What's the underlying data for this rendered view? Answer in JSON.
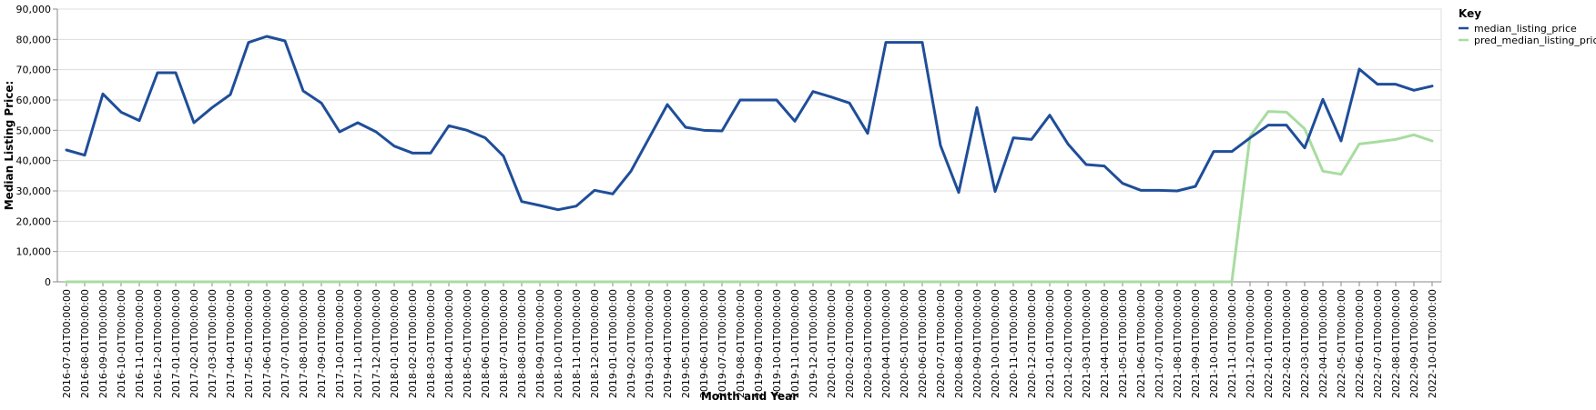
{
  "chart_data": {
    "type": "line",
    "xlabel": "Month and Year",
    "ylabel": "Median Listing Price:",
    "ylim": [
      0,
      90000
    ],
    "yticks": [
      "0",
      "10,000",
      "20,000",
      "30,000",
      "40,000",
      "50,000",
      "60,000",
      "70,000",
      "80,000",
      "90,000"
    ],
    "grid": true,
    "legend": {
      "title": "Key",
      "placement": "top-right"
    },
    "categories": [
      "2016-07-01T00:00:00",
      "2016-08-01T00:00:00",
      "2016-09-01T00:00:00",
      "2016-10-01T00:00:00",
      "2016-11-01T00:00:00",
      "2016-12-01T00:00:00",
      "2017-01-01T00:00:00",
      "2017-02-01T00:00:00",
      "2017-03-01T00:00:00",
      "2017-04-01T00:00:00",
      "2017-05-01T00:00:00",
      "2017-06-01T00:00:00",
      "2017-07-01T00:00:00",
      "2017-08-01T00:00:00",
      "2017-09-01T00:00:00",
      "2017-10-01T00:00:00",
      "2017-11-01T00:00:00",
      "2017-12-01T00:00:00",
      "2018-01-01T00:00:00",
      "2018-02-01T00:00:00",
      "2018-03-01T00:00:00",
      "2018-04-01T00:00:00",
      "2018-05-01T00:00:00",
      "2018-06-01T00:00:00",
      "2018-07-01T00:00:00",
      "2018-08-01T00:00:00",
      "2018-09-01T00:00:00",
      "2018-10-01T00:00:00",
      "2018-11-01T00:00:00",
      "2018-12-01T00:00:00",
      "2019-01-01T00:00:00",
      "2019-02-01T00:00:00",
      "2019-03-01T00:00:00",
      "2019-04-01T00:00:00",
      "2019-05-01T00:00:00",
      "2019-06-01T00:00:00",
      "2019-07-01T00:00:00",
      "2019-08-01T00:00:00",
      "2019-09-01T00:00:00",
      "2019-10-01T00:00:00",
      "2019-11-01T00:00:00",
      "2019-12-01T00:00:00",
      "2020-01-01T00:00:00",
      "2020-02-01T00:00:00",
      "2020-03-01T00:00:00",
      "2020-04-01T00:00:00",
      "2020-05-01T00:00:00",
      "2020-06-01T00:00:00",
      "2020-07-01T00:00:00",
      "2020-08-01T00:00:00",
      "2020-09-01T00:00:00",
      "2020-10-01T00:00:00",
      "2020-11-01T00:00:00",
      "2020-12-01T00:00:00",
      "2021-01-01T00:00:00",
      "2021-02-01T00:00:00",
      "2021-03-01T00:00:00",
      "2021-04-01T00:00:00",
      "2021-05-01T00:00:00",
      "2021-06-01T00:00:00",
      "2021-07-01T00:00:00",
      "2021-08-01T00:00:00",
      "2021-09-01T00:00:00",
      "2021-10-01T00:00:00",
      "2021-11-01T00:00:00",
      "2021-12-01T00:00:00",
      "2022-01-01T00:00:00",
      "2022-02-01T00:00:00",
      "2022-03-01T00:00:00",
      "2022-04-01T00:00:00",
      "2022-05-01T00:00:00",
      "2022-06-01T00:00:00",
      "2022-07-01T00:00:00",
      "2022-08-01T00:00:00",
      "2022-09-01T00:00:00",
      "2022-10-01T00:00:00"
    ],
    "series": [
      {
        "name": "median_listing_price",
        "color": "#1f4e99",
        "values": [
          43500,
          41800,
          62000,
          56000,
          53200,
          69000,
          69000,
          52500,
          57500,
          61800,
          79000,
          81000,
          79500,
          63000,
          59000,
          49500,
          52500,
          49500,
          44800,
          42500,
          42500,
          51500,
          50000,
          47500,
          41500,
          26500,
          25200,
          23800,
          25000,
          30200,
          29000,
          36500,
          47500,
          58500,
          51000,
          50000,
          49800,
          60000,
          60000,
          60000,
          53000,
          62800,
          61000,
          59000,
          49000,
          79000,
          79000,
          79000,
          45000,
          29500,
          57500,
          29800,
          47500,
          47000,
          55000,
          45500,
          38700,
          38200,
          32500,
          30200,
          30200,
          30000,
          31500,
          43000,
          43000,
          47500,
          51700,
          51700,
          44200,
          60200,
          46500,
          70200,
          65200,
          65200,
          63200,
          64600
        ]
      },
      {
        "name": "pred_median_listing_price",
        "color": "#a8dca0",
        "values": [
          0,
          0,
          0,
          0,
          0,
          0,
          0,
          0,
          0,
          0,
          0,
          0,
          0,
          0,
          0,
          0,
          0,
          0,
          0,
          0,
          0,
          0,
          0,
          0,
          0,
          0,
          0,
          0,
          0,
          0,
          0,
          0,
          0,
          0,
          0,
          0,
          0,
          0,
          0,
          0,
          0,
          0,
          0,
          0,
          0,
          0,
          0,
          0,
          0,
          0,
          0,
          0,
          0,
          0,
          0,
          0,
          0,
          0,
          0,
          0,
          0,
          0,
          0,
          0,
          0,
          48000,
          56200,
          56000,
          50500,
          36500,
          35500,
          45500,
          46200,
          47000,
          48500,
          46500
        ]
      }
    ]
  }
}
